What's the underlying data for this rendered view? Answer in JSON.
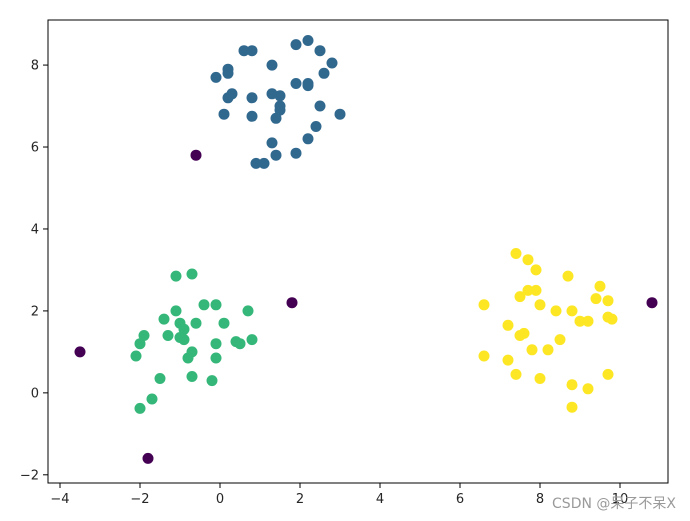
{
  "chart_data": {
    "type": "scatter",
    "title": "",
    "xlabel": "",
    "ylabel": "",
    "xlim": [
      -4.3,
      11.2
    ],
    "ylim": [
      -2.2,
      9.1
    ],
    "xticks": [
      -4,
      -2,
      0,
      2,
      4,
      6,
      8,
      10
    ],
    "yticks": [
      -2,
      0,
      2,
      4,
      6,
      8
    ],
    "grid": false,
    "legend": "none",
    "series": [
      {
        "color": "#31688e",
        "points": [
          [
            -0.1,
            7.7
          ],
          [
            0.2,
            7.8
          ],
          [
            0.2,
            7.9
          ],
          [
            0.6,
            8.35
          ],
          [
            0.8,
            8.35
          ],
          [
            1.9,
            8.5
          ],
          [
            2.2,
            8.6
          ],
          [
            2.5,
            8.35
          ],
          [
            2.8,
            8.05
          ],
          [
            2.6,
            7.8
          ],
          [
            1.3,
            8.0
          ],
          [
            0.3,
            7.3
          ],
          [
            0.2,
            7.2
          ],
          [
            0.8,
            7.2
          ],
          [
            1.3,
            7.3
          ],
          [
            1.5,
            7.25
          ],
          [
            1.9,
            7.55
          ],
          [
            2.2,
            7.5
          ],
          [
            2.2,
            7.55
          ],
          [
            1.5,
            7.0
          ],
          [
            1.5,
            6.9
          ],
          [
            1.4,
            6.7
          ],
          [
            2.5,
            7.0
          ],
          [
            3.0,
            6.8
          ],
          [
            0.1,
            6.8
          ],
          [
            0.8,
            6.75
          ],
          [
            2.4,
            6.5
          ],
          [
            1.3,
            6.1
          ],
          [
            2.2,
            6.2
          ],
          [
            1.4,
            5.8
          ],
          [
            1.9,
            5.85
          ],
          [
            0.9,
            5.6
          ],
          [
            1.1,
            5.6
          ]
        ]
      },
      {
        "color": "#35b779",
        "points": [
          [
            -1.1,
            2.85
          ],
          [
            -0.7,
            2.9
          ],
          [
            -0.4,
            2.15
          ],
          [
            -0.1,
            2.15
          ],
          [
            -1.1,
            2.0
          ],
          [
            0.7,
            2.0
          ],
          [
            -1.4,
            1.8
          ],
          [
            -1.0,
            1.7
          ],
          [
            -0.6,
            1.7
          ],
          [
            0.1,
            1.7
          ],
          [
            -0.9,
            1.55
          ],
          [
            -1.3,
            1.4
          ],
          [
            -1.9,
            1.4
          ],
          [
            -1.0,
            1.35
          ],
          [
            -0.9,
            1.3
          ],
          [
            0.8,
            1.3
          ],
          [
            0.4,
            1.25
          ],
          [
            0.5,
            1.2
          ],
          [
            -0.1,
            1.2
          ],
          [
            -2.0,
            1.2
          ],
          [
            -2.1,
            0.9
          ],
          [
            -0.7,
            1.0
          ],
          [
            -0.8,
            0.85
          ],
          [
            -0.1,
            0.85
          ],
          [
            -1.5,
            0.35
          ],
          [
            -0.7,
            0.4
          ],
          [
            -0.2,
            0.3
          ],
          [
            -1.7,
            -0.15
          ],
          [
            -2.0,
            -0.38
          ]
        ]
      },
      {
        "color": "#fde725",
        "points": [
          [
            7.4,
            3.4
          ],
          [
            7.7,
            3.25
          ],
          [
            7.9,
            3.0
          ],
          [
            8.7,
            2.85
          ],
          [
            9.5,
            2.6
          ],
          [
            7.7,
            2.5
          ],
          [
            7.9,
            2.5
          ],
          [
            7.5,
            2.35
          ],
          [
            9.4,
            2.3
          ],
          [
            9.7,
            2.25
          ],
          [
            6.6,
            2.15
          ],
          [
            8.0,
            2.15
          ],
          [
            8.4,
            2.0
          ],
          [
            8.8,
            2.0
          ],
          [
            9.7,
            1.85
          ],
          [
            9.8,
            1.8
          ],
          [
            9.2,
            1.75
          ],
          [
            9.0,
            1.75
          ],
          [
            7.2,
            1.65
          ],
          [
            7.6,
            1.45
          ],
          [
            7.5,
            1.4
          ],
          [
            8.5,
            1.3
          ],
          [
            7.8,
            1.05
          ],
          [
            8.2,
            1.05
          ],
          [
            6.6,
            0.9
          ],
          [
            7.2,
            0.8
          ],
          [
            7.4,
            0.45
          ],
          [
            8.0,
            0.35
          ],
          [
            9.7,
            0.45
          ],
          [
            8.8,
            0.2
          ],
          [
            9.2,
            0.1
          ],
          [
            8.8,
            -0.35
          ]
        ]
      },
      {
        "color": "#440154",
        "points": [
          [
            -0.6,
            5.8
          ],
          [
            1.8,
            2.2
          ],
          [
            10.8,
            2.2
          ],
          [
            -3.5,
            1.0
          ],
          [
            -1.8,
            -1.6
          ]
        ]
      }
    ]
  },
  "watermark": "CSDN @呆子不呆X"
}
